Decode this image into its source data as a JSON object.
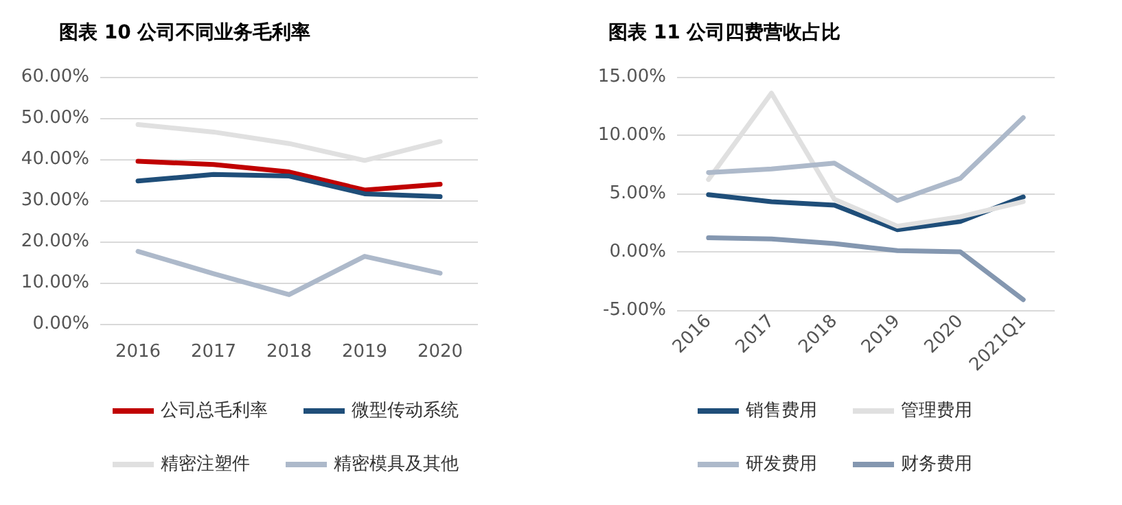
{
  "chart_data": [
    {
      "type": "line",
      "title": "图表 10 公司不同业务毛利率",
      "categories": [
        "2016",
        "2017",
        "2018",
        "2019",
        "2020"
      ],
      "ylim": [
        0,
        60
      ],
      "yticks": [
        {
          "value": 0,
          "label": "0.00%"
        },
        {
          "value": 10,
          "label": "10.00%"
        },
        {
          "value": 20,
          "label": "20.00%"
        },
        {
          "value": 30,
          "label": "30.00%"
        },
        {
          "value": 40,
          "label": "40.00%"
        },
        {
          "value": 50,
          "label": "50.00%"
        },
        {
          "value": 60,
          "label": "60.00%"
        }
      ],
      "grid": "y",
      "legend": "bottom",
      "marker": "none",
      "line_style": "solid",
      "series": [
        {
          "name": "公司总毛利率",
          "color": "#c00000",
          "values": [
            39.5,
            38.7,
            36.9,
            32.5,
            33.9
          ]
        },
        {
          "name": "微型传动系统",
          "color": "#1f4e79",
          "values": [
            34.7,
            36.3,
            35.9,
            31.6,
            30.9
          ]
        },
        {
          "name": "精密注塑件",
          "color": "#e0e0e0",
          "values": [
            48.4,
            46.6,
            43.8,
            39.7,
            44.3
          ]
        },
        {
          "name": "精密模具及其他",
          "color": "#adb9ca",
          "values": [
            17.6,
            12.2,
            7.1,
            16.4,
            12.3
          ]
        }
      ]
    },
    {
      "type": "line",
      "title": "图表 11 公司四费营收占比",
      "categories": [
        "2016",
        "2017",
        "2018",
        "2019",
        "2020",
        "2021Q1"
      ],
      "ylim": [
        -5,
        15
      ],
      "yticks": [
        {
          "value": -5,
          "label": "-5.00%"
        },
        {
          "value": 0,
          "label": "0.00%"
        },
        {
          "value": 5,
          "label": "5.00%"
        },
        {
          "value": 10,
          "label": "10.00%"
        },
        {
          "value": 15,
          "label": "15.00%"
        }
      ],
      "grid": "y",
      "legend": "bottom",
      "marker": "none",
      "line_style": "solid",
      "series": [
        {
          "name": "销售费用",
          "color": "#1f4e79",
          "values": [
            4.9,
            4.3,
            4.0,
            1.9,
            2.6,
            4.7
          ]
        },
        {
          "name": "管理费用",
          "color": "#e0e0e0",
          "values": [
            6.2,
            13.6,
            4.5,
            2.2,
            3.0,
            4.3
          ]
        },
        {
          "name": "研发费用",
          "color": "#adb9ca",
          "values": [
            6.8,
            7.1,
            7.6,
            4.4,
            6.3,
            11.5
          ]
        },
        {
          "name": "财务费用",
          "color": "#8497b0",
          "values": [
            1.2,
            1.1,
            0.7,
            0.1,
            0,
            -4.1
          ]
        }
      ]
    }
  ]
}
